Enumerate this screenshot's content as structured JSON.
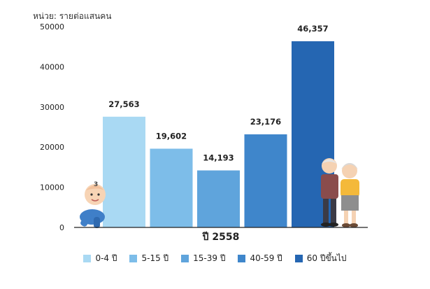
{
  "chart_data": {
    "type": "bar",
    "unit_label": "หน่วย: รายต่อแสนคน",
    "xlabel": "ปี 2558",
    "ylim": [
      0,
      50000
    ],
    "yticks": [
      0,
      10000,
      20000,
      30000,
      40000,
      50000
    ],
    "grid": false,
    "legend_position": "bottom",
    "series": [
      {
        "name": "0-4 ปี",
        "value": 27563,
        "label": "27,563",
        "color": "#a9d9f3"
      },
      {
        "name": "5-15 ปี",
        "value": 19602,
        "label": "19,602",
        "color": "#7dbde9"
      },
      {
        "name": "15-39 ปี",
        "value": 14193,
        "label": "14,193",
        "color": "#5fa4dc"
      },
      {
        "name": "40-59 ปี",
        "value": 23176,
        "label": "23,176",
        "color": "#3f86cb"
      },
      {
        "name": "60 ปีขึ้นไป",
        "value": 46357,
        "label": "46,357",
        "color": "#2566b2"
      }
    ]
  },
  "illustrations": {
    "baby": "crawling-baby-illustration",
    "elderly": "elderly-couple-illustration"
  }
}
